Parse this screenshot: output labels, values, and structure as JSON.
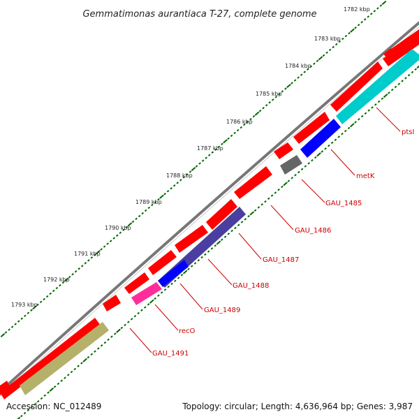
{
  "title": "Gemmatimonas aurantiaca T-27, complete genome",
  "footer": {
    "accession": "Accession: NC_012489",
    "topology": "Topology: circular; Length: 4,636,964 bp; Genes: 3,987"
  },
  "kbp_ticks": [
    "1782 kbp",
    "1783 kbp",
    "1784 kbp",
    "1785 kbp",
    "1786 kbp",
    "1787 kbp",
    "1788 kbp",
    "1789 kbp",
    "1790 kbp",
    "1791 kbp",
    "1792 kbp",
    "1793 kbp"
  ],
  "gene_labels": [
    "ptsI",
    "metK",
    "GAU_1485",
    "GAU_1486",
    "GAU_1487",
    "GAU_1488",
    "GAU_1489",
    "recO",
    "GAU_1491"
  ],
  "colors": {
    "cds": "#ff0000",
    "backbone": "#777777",
    "tick": "#006600",
    "cyan": "#00cccc",
    "blue": "#0000ff",
    "gray": "#666666",
    "purple": "#4a3fa0",
    "pink": "#ff2d9a",
    "olive": "#b5b06a"
  }
}
